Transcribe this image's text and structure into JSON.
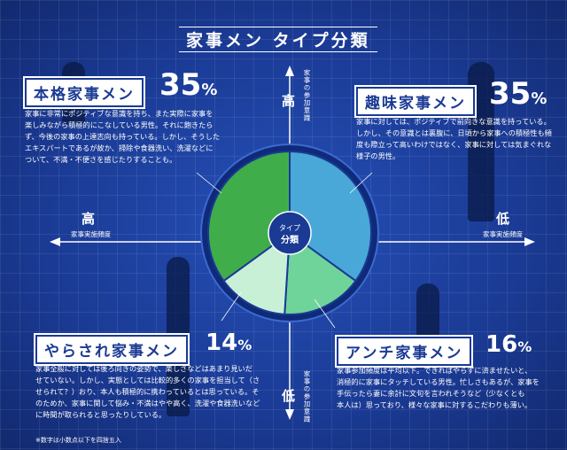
{
  "title": "家事メン タイプ分類",
  "chart_data": {
    "type": "pie",
    "title": "家事メン タイプ分類",
    "center_label": [
      "タイプ",
      "分類"
    ],
    "slices": [
      {
        "name": "趣味家事メン",
        "value": 35,
        "color": "#4aa8d8"
      },
      {
        "name": "アンチ家事メン",
        "value": 16,
        "color": "#6fd49a"
      },
      {
        "name": "やらされ家事メン",
        "value": 14,
        "color": "#c7f0d6"
      },
      {
        "name": "本格家事メン",
        "value": 35,
        "color": "#3fae4a"
      }
    ],
    "axes": {
      "vertical": {
        "label": "家事の参加意識",
        "top": "高",
        "bottom": "低"
      },
      "horizontal": {
        "label": "家事実施頻度",
        "left": "高",
        "right": "低"
      }
    }
  },
  "types": {
    "honkaku": {
      "name": "本格家事メン",
      "percent": "35",
      "unit": "%",
      "desc": [
        "家事に非常にポジティブな意識を持ち、また実際に家事を",
        "楽しみながら積極的にこなしている男性。それに飽きたら",
        "ず、今後の家事の上達志向も持っている。しかし、そうした",
        "エキスパートであるが故か、掃除や食器洗い、洗濯などに",
        "ついて、不満・不便さを感じたりすることも。"
      ]
    },
    "shumi": {
      "name": "趣味家事メン",
      "percent": "35",
      "unit": "%",
      "desc": [
        "家事に対しては、ポジティブで前向きな意識を持っている。",
        "しかし、その意識とは裏腹に、日頃から家事への積極性も頻",
        "度も際立って高いわけではなく、家事に対しては気まぐれな",
        "様子の男性。"
      ]
    },
    "yarasare": {
      "name": "やらされ家事メン",
      "percent": "14",
      "unit": "%",
      "desc": [
        "家事全般に対しては後ろ向きの姿勢で、楽しさなどはあまり見いだ",
        "せていない。しかし、実態としては比較的多くの家事を担当して（さ",
        "せられて？）おり、本人も積極的に携わっているとは思っている。そ",
        "のためか、家事に関して悩み・不満はやや高く、洗濯や食器洗いなど",
        "に時間が取られると思ったりしている。"
      ]
    },
    "anti": {
      "name": "アンチ家事メン",
      "percent": "16",
      "unit": "%",
      "desc": [
        "家事参加頻度は平均以下。できればやらずに済ませたいと、",
        "消極的に家事にタッチしている男性。忙しさもあるが、家事を",
        "手伝ったら妻に余計に文句を言われそうなど（少なくとも",
        "本人は）思っており、様々な家事に対するこだわりも薄い。"
      ]
    }
  },
  "footnote": "※数字は小数点以下を四捨五入"
}
